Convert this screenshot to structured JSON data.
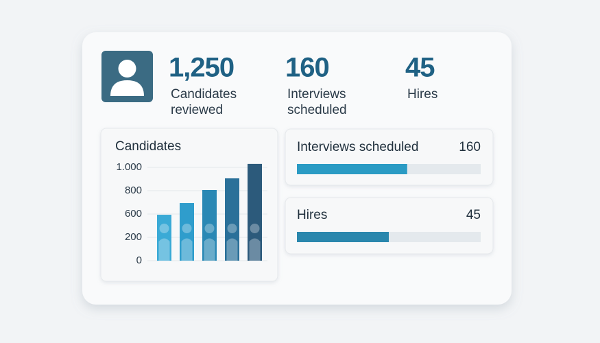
{
  "stats": [
    {
      "value": "1,250",
      "label_lines": [
        "Candidates",
        "reviewed"
      ]
    },
    {
      "value": "160",
      "label_lines": [
        "Interviews",
        "scheduled"
      ]
    },
    {
      "value": "45",
      "label_lines": [
        "Hires"
      ]
    }
  ],
  "chart_data": {
    "type": "bar",
    "title": "Candidates",
    "categories": [
      null,
      null,
      null,
      null,
      null
    ],
    "values": [
      588,
      694,
      806,
      906,
      1030
    ],
    "colors": [
      "#3aaad6",
      "#2f9dcc",
      "#2a88b4",
      "#2a7099",
      "#2c5a7b"
    ],
    "ylim": [
      0,
      1050
    ],
    "yticks": [
      0,
      200,
      600,
      800,
      {
        "value": 1000,
        "label": "1.000"
      }
    ],
    "grid": true
  },
  "progress": [
    {
      "label": "Interviews scheduled",
      "value": "160",
      "fill": 60
    },
    {
      "label": "Hires",
      "value": "45",
      "fill": 50
    }
  ]
}
